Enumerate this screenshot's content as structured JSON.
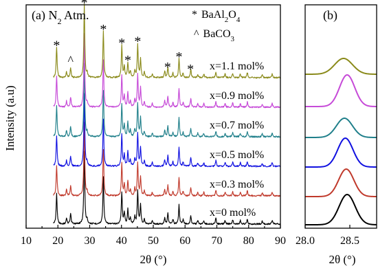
{
  "colors": {
    "x0": "#000000",
    "x03": "#c0392b",
    "x05": "#1010e0",
    "x07": "#1f7f8a",
    "x09": "#c64bd8",
    "x11": "#8a8a1a",
    "pink_shadow": "#f3c6f0"
  },
  "chart_data": [
    {
      "panel": "a",
      "type": "line",
      "title": "(a) N₂ Atm.",
      "title_parts": {
        "prefix": "(a) N",
        "sub": "2",
        "suffix": " Atm."
      },
      "xlabel": "2θ (°)",
      "ylabel": "Intensity (a.u)",
      "xlim": [
        10,
        90
      ],
      "xticks": [
        "10",
        "20",
        "30",
        "40",
        "50",
        "60",
        "70",
        "80",
        "90"
      ],
      "yticks": [],
      "grid": false,
      "legend": {
        "placement": "top-right",
        "entries": [
          {
            "marker": "*",
            "label_parts": [
              "BaAl",
              "2",
              "O",
              "4"
            ],
            "label": "BaAl₂O₄"
          },
          {
            "marker": "^",
            "label_parts": [
              "BaCO",
              "3"
            ],
            "label": "BaCO₃"
          }
        ]
      },
      "peak_markers": [
        {
          "symbol": "*",
          "x": 19.6,
          "phase": "BaAl2O4"
        },
        {
          "symbol": "^",
          "x": 24.0,
          "phase": "BaCO3"
        },
        {
          "symbol": "*",
          "x": 28.3,
          "phase": "BaAl2O4"
        },
        {
          "symbol": "*",
          "x": 34.3,
          "phase": "BaAl2O4"
        },
        {
          "symbol": "*",
          "x": 40.1,
          "phase": "BaAl2O4"
        },
        {
          "symbol": "*",
          "x": 42.0,
          "phase": "BaAl2O4"
        },
        {
          "symbol": "*",
          "x": 45.1,
          "phase": "BaAl2O4"
        },
        {
          "symbol": "*",
          "x": 54.5,
          "phase": "BaAl2O4"
        },
        {
          "symbol": "*",
          "x": 58.1,
          "phase": "BaAl2O4"
        },
        {
          "symbol": "*",
          "x": 61.7,
          "phase": "BaAl2O4"
        }
      ],
      "peaks": [
        {
          "x": 19.6,
          "h": 0.42
        },
        {
          "x": 22.7,
          "h": 0.08
        },
        {
          "x": 24.0,
          "h": 0.14
        },
        {
          "x": 28.3,
          "h": 1.0
        },
        {
          "x": 29.2,
          "h": 0.06
        },
        {
          "x": 34.3,
          "h": 0.64
        },
        {
          "x": 40.1,
          "h": 0.44
        },
        {
          "x": 40.9,
          "h": 0.16
        },
        {
          "x": 42.0,
          "h": 0.2
        },
        {
          "x": 42.8,
          "h": 0.09
        },
        {
          "x": 44.2,
          "h": 0.1
        },
        {
          "x": 45.1,
          "h": 0.46
        },
        {
          "x": 46.0,
          "h": 0.26
        },
        {
          "x": 47.2,
          "h": 0.07
        },
        {
          "x": 49.7,
          "h": 0.05
        },
        {
          "x": 53.6,
          "h": 0.09
        },
        {
          "x": 54.6,
          "h": 0.15
        },
        {
          "x": 56.2,
          "h": 0.06
        },
        {
          "x": 58.1,
          "h": 0.26
        },
        {
          "x": 59.4,
          "h": 0.06
        },
        {
          "x": 61.8,
          "h": 0.12
        },
        {
          "x": 64.0,
          "h": 0.05
        },
        {
          "x": 65.9,
          "h": 0.05
        },
        {
          "x": 69.7,
          "h": 0.08
        },
        {
          "x": 72.6,
          "h": 0.05
        },
        {
          "x": 75.0,
          "h": 0.06
        },
        {
          "x": 77.4,
          "h": 0.05
        },
        {
          "x": 79.6,
          "h": 0.07
        },
        {
          "x": 84.3,
          "h": 0.04
        },
        {
          "x": 87.4,
          "h": 0.05
        }
      ],
      "series": [
        {
          "name": "x=0 mol%",
          "color": "#000000",
          "offset": 0
        },
        {
          "name": "x=0.3 mol%",
          "color": "#c0392b",
          "offset": 1
        },
        {
          "name": "x=0.5 mol%",
          "color": "#1010e0",
          "offset": 2
        },
        {
          "name": "x=0.7 mol%",
          "color": "#1f7f8a",
          "offset": 3
        },
        {
          "name": "x=0.9 mol%",
          "color": "#c64bd8",
          "offset": 4
        },
        {
          "name": "x=1.1 mol%",
          "color": "#8a8a1a",
          "offset": 5
        }
      ]
    },
    {
      "panel": "b",
      "type": "line",
      "title": "(b)",
      "xlabel": "2θ (°)",
      "xlim": [
        28.0,
        28.8
      ],
      "xticks": [
        "28.0",
        "28.5"
      ],
      "grid": false,
      "series": [
        {
          "name": "x=0 mol%",
          "color": "#000000",
          "center": 28.47,
          "width": 0.09
        },
        {
          "name": "x=0.3 mol%",
          "color": "#c0392b",
          "center": 28.46,
          "width": 0.085
        },
        {
          "name": "x=0.5 mol%",
          "color": "#1010e0",
          "center": 28.45,
          "width": 0.085
        },
        {
          "name": "x=0.7 mol%",
          "color": "#1f7f8a",
          "center": 28.44,
          "width": 0.09
        },
        {
          "name": "x=0.9 mol%",
          "color": "#c64bd8",
          "center": 28.47,
          "width": 0.085
        },
        {
          "name": "x=1.1 mol%",
          "color": "#8a8a1a",
          "center": 28.43,
          "width": 0.1
        }
      ]
    }
  ]
}
